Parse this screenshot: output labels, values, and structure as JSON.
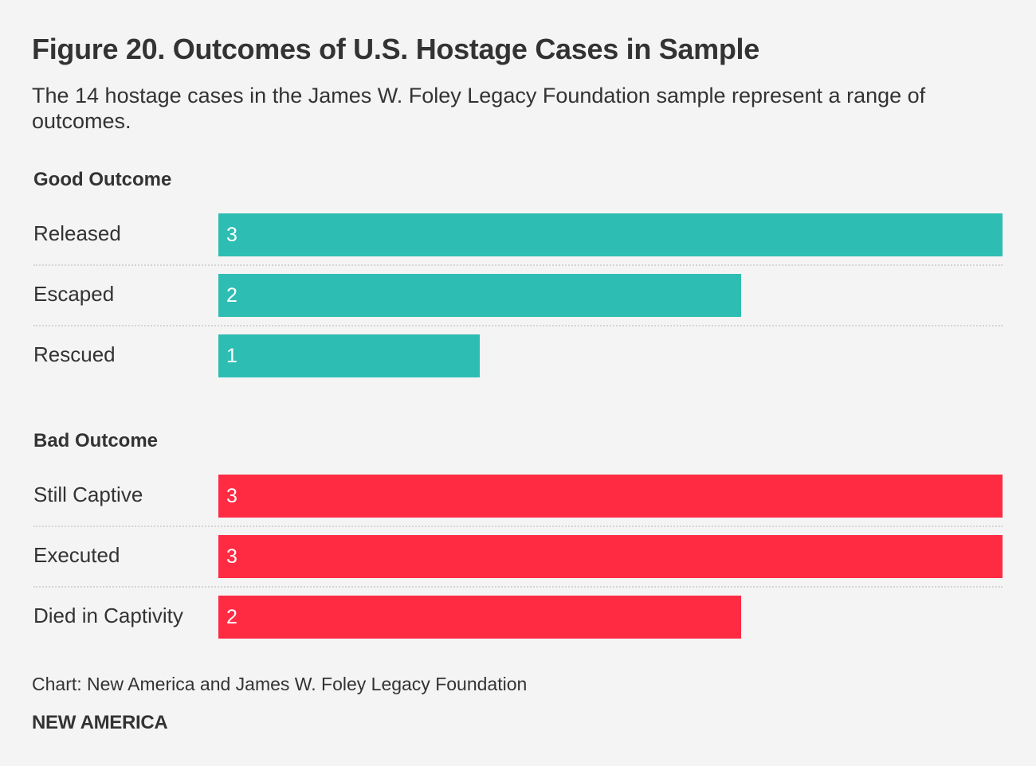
{
  "title": "Figure 20. Outcomes of U.S. Hostage Cases in Sample",
  "subtitle": "The 14 hostage cases in the James W. Foley Legacy Foundation sample represent a range of outcomes.",
  "source": "Chart: New America and James W. Foley Legacy Foundation",
  "brand": "NEW AMERICA",
  "chart_data": {
    "type": "bar",
    "orientation": "horizontal",
    "title": "Figure 20. Outcomes of U.S. Hostage Cases in Sample",
    "xlabel": "",
    "ylabel": "",
    "xlim": [
      0,
      3
    ],
    "grid": false,
    "groups": [
      {
        "name": "Good Outcome",
        "color": "#2ebdb3",
        "categories": [
          "Released",
          "Escaped",
          "Rescued"
        ],
        "values": [
          3,
          2,
          1
        ]
      },
      {
        "name": "Bad Outcome",
        "color": "#ff2b43",
        "categories": [
          "Still Captive",
          "Executed",
          "Died in Captivity"
        ],
        "values": [
          3,
          3,
          2
        ]
      }
    ]
  }
}
